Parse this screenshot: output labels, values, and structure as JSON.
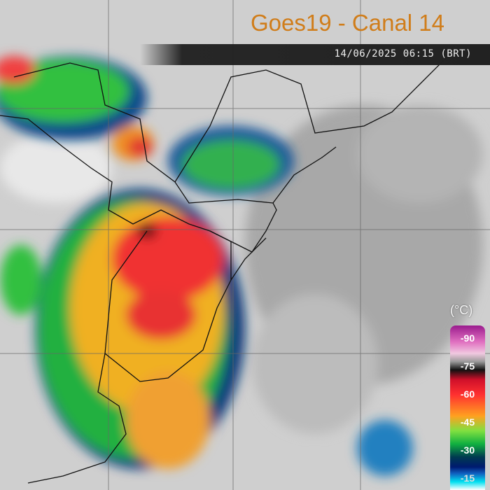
{
  "title": "Goes19 - Canal 14",
  "timestamp": "14/06/2025 06:15 (BRT)",
  "legend": {
    "unit": "(°C)",
    "levels": [
      "-90",
      "-75",
      "-60",
      "-45",
      "-30",
      "-15"
    ]
  },
  "colors": {
    "title": "#d07d1a",
    "cold_top": "#d0102a",
    "background_clouds": "#c9c9c9"
  }
}
